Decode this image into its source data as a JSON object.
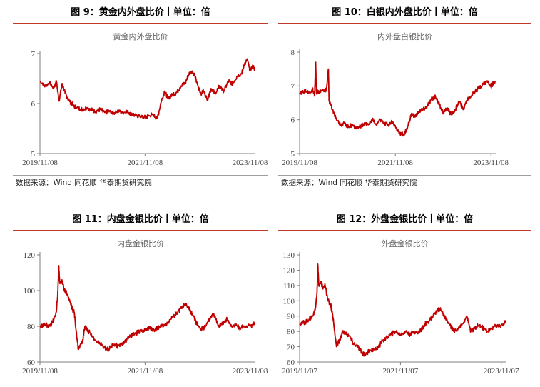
{
  "colors": {
    "series": "#c00000",
    "rule": "#c0392b",
    "axis": "#7f7f7f"
  },
  "figures": [
    {
      "figure_title": "图 9：黄金内外盘比价丨单位：倍",
      "source": "数据来源：Wind 同花顺 华泰期货研究院"
    },
    {
      "figure_title": "图 10：白银内外盘比价丨单位：倍",
      "source": "数据来源：Wind 同花顺 华泰期货研究院"
    },
    {
      "figure_title": "图 11：内盘金银比价丨单位：倍",
      "source": ""
    },
    {
      "figure_title": "图 12：外盘金银比价丨单位：倍",
      "source": ""
    }
  ],
  "chart_data": [
    {
      "type": "line",
      "title": "黄金内外盘比价",
      "xlabel": "",
      "ylabel": "",
      "x_ticks": [
        "2019/11/08",
        "2021/11/08",
        "2023/11/08"
      ],
      "xlim": [
        "2019/11/08",
        "2023/12/15"
      ],
      "y_ticks": [
        5,
        6,
        7
      ],
      "ylim": [
        5,
        7
      ],
      "grid": false,
      "series": [
        {
          "values": [
            [
              "2019/11/08",
              6.45
            ],
            [
              "2019/12/15",
              6.35
            ],
            [
              "2020/01/15",
              6.42
            ],
            [
              "2020/02/10",
              6.3
            ],
            [
              "2020/03/01",
              6.45
            ],
            [
              "2020/03/20",
              6.05
            ],
            [
              "2020/04/10",
              6.4
            ],
            [
              "2020/05/01",
              6.2
            ],
            [
              "2020/06/01",
              6.05
            ],
            [
              "2020/07/01",
              5.95
            ],
            [
              "2020/08/01",
              5.9
            ],
            [
              "2020/09/01",
              5.88
            ],
            [
              "2020/10/01",
              5.92
            ],
            [
              "2020/11/01",
              5.87
            ],
            [
              "2020/12/01",
              5.85
            ],
            [
              "2021/01/01",
              5.88
            ],
            [
              "2021/02/01",
              5.82
            ],
            [
              "2021/03/01",
              5.85
            ],
            [
              "2021/04/01",
              5.8
            ],
            [
              "2021/05/01",
              5.86
            ],
            [
              "2021/06/01",
              5.82
            ],
            [
              "2021/07/01",
              5.84
            ],
            [
              "2021/08/01",
              5.8
            ],
            [
              "2021/09/01",
              5.76
            ],
            [
              "2021/10/01",
              5.75
            ],
            [
              "2021/11/01",
              5.72
            ],
            [
              "2021/12/01",
              5.75
            ],
            [
              "2022/01/01",
              5.78
            ],
            [
              "2022/02/01",
              5.7
            ],
            [
              "2022/03/01",
              6.05
            ],
            [
              "2022/03/25",
              6.25
            ],
            [
              "2022/04/15",
              6.1
            ],
            [
              "2022/05/15",
              6.18
            ],
            [
              "2022/06/15",
              6.22
            ],
            [
              "2022/07/15",
              6.35
            ],
            [
              "2022/08/15",
              6.42
            ],
            [
              "2022/09/10",
              6.6
            ],
            [
              "2022/10/01",
              6.65
            ],
            [
              "2022/10/20",
              6.55
            ],
            [
              "2022/11/10",
              6.35
            ],
            [
              "2022/12/01",
              6.2
            ],
            [
              "2022/12/20",
              6.25
            ],
            [
              "2023/01/15",
              6.08
            ],
            [
              "2023/02/10",
              6.3
            ],
            [
              "2023/03/10",
              6.2
            ],
            [
              "2023/04/10",
              6.35
            ],
            [
              "2023/05/10",
              6.25
            ],
            [
              "2023/06/10",
              6.45
            ],
            [
              "2023/07/10",
              6.4
            ],
            [
              "2023/08/10",
              6.55
            ],
            [
              "2023/09/10",
              6.6
            ],
            [
              "2023/10/01",
              6.8
            ],
            [
              "2023/10/20",
              6.88
            ],
            [
              "2023/11/08",
              6.65
            ],
            [
              "2023/11/25",
              6.75
            ],
            [
              "2023/12/10",
              6.7
            ]
          ]
        }
      ]
    },
    {
      "type": "line",
      "title": "内外盘白银比价",
      "xlabel": "",
      "ylabel": "",
      "x_ticks": [
        "2019/11/08",
        "2021/11/08",
        "2023/11/08"
      ],
      "xlim": [
        "2019/11/08",
        "2023/12/15"
      ],
      "y_ticks": [
        5,
        6,
        7,
        8
      ],
      "ylim": [
        5,
        8
      ],
      "grid": false,
      "series": [
        {
          "values": [
            [
              "2019/11/08",
              6.8
            ],
            [
              "2019/12/20",
              6.85
            ],
            [
              "2020/01/20",
              6.8
            ],
            [
              "2020/02/15",
              6.9
            ],
            [
              "2020/03/01",
              6.7
            ],
            [
              "2020/03/10",
              7.7
            ],
            [
              "2020/03/15",
              6.8
            ],
            [
              "2020/04/10",
              6.85
            ],
            [
              "2020/05/10",
              6.85
            ],
            [
              "2020/06/01",
              6.9
            ],
            [
              "2020/06/15",
              7.5
            ],
            [
              "2020/06/20",
              6.55
            ],
            [
              "2020/07/15",
              6.3
            ],
            [
              "2020/08/15",
              6.05
            ],
            [
              "2020/09/15",
              5.85
            ],
            [
              "2020/10/15",
              5.9
            ],
            [
              "2020/11/15",
              5.8
            ],
            [
              "2020/12/15",
              5.85
            ],
            [
              "2021/01/15",
              5.75
            ],
            [
              "2021/02/15",
              5.8
            ],
            [
              "2021/03/15",
              5.9
            ],
            [
              "2021/04/15",
              5.85
            ],
            [
              "2021/05/15",
              6.0
            ],
            [
              "2021/06/15",
              5.85
            ],
            [
              "2021/07/15",
              6.0
            ],
            [
              "2021/08/15",
              5.9
            ],
            [
              "2021/09/15",
              5.85
            ],
            [
              "2021/10/15",
              5.95
            ],
            [
              "2021/11/15",
              5.75
            ],
            [
              "2021/12/15",
              5.6
            ],
            [
              "2022/01/15",
              5.55
            ],
            [
              "2022/02/10",
              5.8
            ],
            [
              "2022/03/10",
              6.15
            ],
            [
              "2022/04/10",
              6.1
            ],
            [
              "2022/05/10",
              6.25
            ],
            [
              "2022/06/10",
              6.3
            ],
            [
              "2022/07/10",
              6.4
            ],
            [
              "2022/08/10",
              6.6
            ],
            [
              "2022/09/10",
              6.7
            ],
            [
              "2022/10/10",
              6.45
            ],
            [
              "2022/11/10",
              6.2
            ],
            [
              "2022/12/10",
              6.35
            ],
            [
              "2023/01/10",
              6.15
            ],
            [
              "2023/02/10",
              6.3
            ],
            [
              "2023/03/10",
              6.55
            ],
            [
              "2023/04/10",
              6.3
            ],
            [
              "2023/05/10",
              6.6
            ],
            [
              "2023/06/10",
              6.7
            ],
            [
              "2023/07/10",
              6.85
            ],
            [
              "2023/08/10",
              6.95
            ],
            [
              "2023/09/10",
              7.05
            ],
            [
              "2023/10/10",
              7.15
            ],
            [
              "2023/11/08",
              7.0
            ],
            [
              "2023/12/10",
              7.15
            ]
          ]
        }
      ]
    },
    {
      "type": "line",
      "title": "内盘金银比价",
      "xlabel": "",
      "ylabel": "",
      "x_ticks": [
        "2019/11/08",
        "2021/11/08",
        "2023/11/08"
      ],
      "xlim": [
        "2019/11/08",
        "2023/12/15"
      ],
      "y_ticks": [
        60,
        80,
        100,
        120
      ],
      "ylim": [
        60,
        120
      ],
      "grid": false,
      "series": [
        {
          "values": [
            [
              "2019/11/08",
              80
            ],
            [
              "2019/12/15",
              81
            ],
            [
              "2020/01/15",
              80
            ],
            [
              "2020/02/10",
              83
            ],
            [
              "2020/03/01",
              88
            ],
            [
              "2020/03/12",
              100
            ],
            [
              "2020/03/18",
              114
            ],
            [
              "2020/03/25",
              104
            ],
            [
              "2020/04/10",
              105
            ],
            [
              "2020/04/25",
              100
            ],
            [
              "2020/05/10",
              99
            ],
            [
              "2020/06/01",
              95
            ],
            [
              "2020/06/20",
              90
            ],
            [
              "2020/07/05",
              87
            ],
            [
              "2020/07/20",
              75
            ],
            [
              "2020/08/01",
              67
            ],
            [
              "2020/08/15",
              70
            ],
            [
              "2020/09/01",
              72
            ],
            [
              "2020/09/15",
              80
            ],
            [
              "2020/10/01",
              78
            ],
            [
              "2020/11/01",
              75
            ],
            [
              "2020/12/01",
              72
            ],
            [
              "2021/01/01",
              70
            ],
            [
              "2021/02/01",
              68
            ],
            [
              "2021/03/01",
              67
            ],
            [
              "2021/04/01",
              70
            ],
            [
              "2021/05/01",
              69
            ],
            [
              "2021/06/01",
              70
            ],
            [
              "2021/07/01",
              72
            ],
            [
              "2021/08/01",
              75
            ],
            [
              "2021/09/01",
              76
            ],
            [
              "2021/10/01",
              77
            ],
            [
              "2021/11/08",
              78
            ],
            [
              "2021/12/15",
              79
            ],
            [
              "2022/01/15",
              78
            ],
            [
              "2022/02/15",
              80
            ],
            [
              "2022/03/15",
              80
            ],
            [
              "2022/04/15",
              82
            ],
            [
              "2022/05/15",
              85
            ],
            [
              "2022/06/15",
              87
            ],
            [
              "2022/07/15",
              90
            ],
            [
              "2022/08/15",
              92
            ],
            [
              "2022/09/10",
              90
            ],
            [
              "2022/10/01",
              87
            ],
            [
              "2022/11/01",
              82
            ],
            [
              "2022/12/01",
              78
            ],
            [
              "2023/01/01",
              80
            ],
            [
              "2023/02/01",
              84
            ],
            [
              "2023/03/01",
              87
            ],
            [
              "2023/04/01",
              80
            ],
            [
              "2023/05/01",
              82
            ],
            [
              "2023/06/01",
              84
            ],
            [
              "2023/07/01",
              80
            ],
            [
              "2023/08/01",
              81
            ],
            [
              "2023/09/01",
              79
            ],
            [
              "2023/10/01",
              80
            ],
            [
              "2023/11/08",
              80
            ],
            [
              "2023/12/10",
              82
            ]
          ]
        }
      ]
    },
    {
      "type": "line",
      "title": "外盘金银比价",
      "xlabel": "",
      "ylabel": "",
      "x_ticks": [
        "2019/11/07",
        "2021/11/07",
        "2023/11/07"
      ],
      "xlim": [
        "2019/11/07",
        "2023/12/15"
      ],
      "y_ticks": [
        60,
        70,
        80,
        90,
        100,
        110,
        120,
        130
      ],
      "ylim": [
        60,
        130
      ],
      "grid": false,
      "series": [
        {
          "values": [
            [
              "2019/11/07",
              85
            ],
            [
              "2019/12/15",
              86
            ],
            [
              "2020/01/15",
              88
            ],
            [
              "2020/02/10",
              90
            ],
            [
              "2020/03/01",
              95
            ],
            [
              "2020/03/12",
              105
            ],
            [
              "2020/03/18",
              124
            ],
            [
              "2020/03/25",
              110
            ],
            [
              "2020/04/10",
              112
            ],
            [
              "2020/04/25",
              108
            ],
            [
              "2020/05/10",
              110
            ],
            [
              "2020/06/01",
              100
            ],
            [
              "2020/06/20",
              97
            ],
            [
              "2020/07/05",
              90
            ],
            [
              "2020/07/20",
              78
            ],
            [
              "2020/08/01",
              70
            ],
            [
              "2020/08/15",
              73
            ],
            [
              "2020/09/01",
              76
            ],
            [
              "2020/09/15",
              80
            ],
            [
              "2020/10/01",
              79
            ],
            [
              "2020/11/01",
              77
            ],
            [
              "2020/12/01",
              72
            ],
            [
              "2021/01/01",
              70
            ],
            [
              "2021/02/01",
              66
            ],
            [
              "2021/03/01",
              65
            ],
            [
              "2021/04/01",
              68
            ],
            [
              "2021/05/01",
              68
            ],
            [
              "2021/06/01",
              70
            ],
            [
              "2021/07/01",
              74
            ],
            [
              "2021/08/01",
              76
            ],
            [
              "2021/09/01",
              78
            ],
            [
              "2021/10/01",
              80
            ],
            [
              "2021/11/07",
              78
            ],
            [
              "2021/12/15",
              80
            ],
            [
              "2022/01/15",
              78
            ],
            [
              "2022/02/15",
              80
            ],
            [
              "2022/03/15",
              79
            ],
            [
              "2022/04/15",
              82
            ],
            [
              "2022/05/15",
              86
            ],
            [
              "2022/06/15",
              88
            ],
            [
              "2022/07/15",
              92
            ],
            [
              "2022/08/15",
              95
            ],
            [
              "2022/09/10",
              92
            ],
            [
              "2022/10/01",
              88
            ],
            [
              "2022/11/01",
              84
            ],
            [
              "2022/12/01",
              80
            ],
            [
              "2023/01/01",
              82
            ],
            [
              "2023/02/01",
              85
            ],
            [
              "2023/03/01",
              90
            ],
            [
              "2023/04/01",
              80
            ],
            [
              "2023/05/01",
              82
            ],
            [
              "2023/06/01",
              84
            ],
            [
              "2023/07/01",
              82
            ],
            [
              "2023/08/01",
              80
            ],
            [
              "2023/09/01",
              82
            ],
            [
              "2023/10/01",
              84
            ],
            [
              "2023/11/07",
              84
            ],
            [
              "2023/12/10",
              86
            ]
          ]
        }
      ]
    }
  ]
}
